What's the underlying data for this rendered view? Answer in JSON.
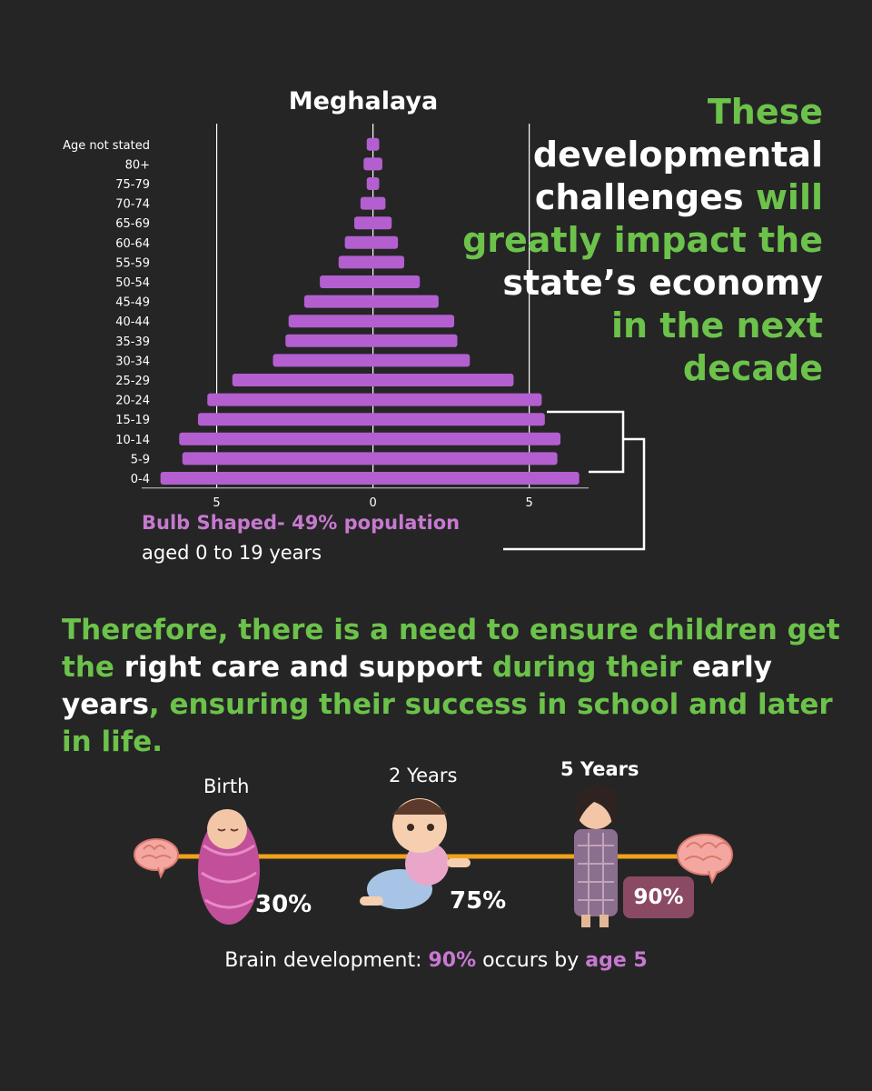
{
  "chart_data": {
    "type": "bar",
    "orientation": "horizontal",
    "title": "Meghalaya",
    "categories": [
      "Age not stated",
      "80+",
      "75-79",
      "70-74",
      "65-69",
      "60-64",
      "55-59",
      "50-54",
      "45-49",
      "40-44",
      "35-39",
      "30-34",
      "25-29",
      "20-24",
      "15-19",
      "10-14",
      "5-9",
      "0-4"
    ],
    "series": [
      {
        "values": [
          [
            -0.2,
            0.2
          ],
          [
            -0.3,
            0.3
          ],
          [
            -0.2,
            0.2
          ],
          [
            -0.4,
            0.4
          ],
          [
            -0.6,
            0.6
          ],
          [
            -0.9,
            0.8
          ],
          [
            -1.1,
            1.0
          ],
          [
            -1.7,
            1.5
          ],
          [
            -2.2,
            2.1
          ],
          [
            -2.7,
            2.6
          ],
          [
            -2.8,
            2.7
          ],
          [
            -3.2,
            3.1
          ],
          [
            -4.5,
            4.5
          ],
          [
            -5.3,
            5.4
          ],
          [
            -5.6,
            5.5
          ],
          [
            -6.2,
            6.0
          ],
          [
            -6.1,
            5.9
          ],
          [
            -6.8,
            6.6
          ]
        ]
      }
    ],
    "xticks": [
      {
        "value": -5,
        "label": "5"
      },
      {
        "value": 0,
        "label": "0"
      },
      {
        "value": 5,
        "label": "5"
      }
    ],
    "xlim": [
      -7.4,
      6.9
    ],
    "grid": "vertical lines at ticks",
    "colors": {
      "bar": "#b35fd0",
      "grid": "#ffffff"
    }
  },
  "headline": {
    "parts": [
      {
        "text": "These ",
        "color": "green"
      },
      {
        "text": "developmental challenges ",
        "color": "white"
      },
      {
        "text": "will greatly impact the ",
        "color": "green"
      },
      {
        "text": "state’s economy ",
        "color": "white"
      },
      {
        "text": "in the next decade",
        "color": "green"
      }
    ]
  },
  "annotation": {
    "title": "Bulb Shaped- 49% population",
    "subtitle": "aged 0 to 19 years"
  },
  "paragraph": {
    "parts": [
      {
        "text": "Therefore, there is a need to ensure children get the ",
        "color": "green"
      },
      {
        "text": "right care and support ",
        "color": "white"
      },
      {
        "text": "during their ",
        "color": "green"
      },
      {
        "text": "early years",
        "color": "white"
      },
      {
        "text": ", ensuring their success in school and later in life.",
        "color": "green"
      }
    ]
  },
  "timeline": {
    "stages": [
      {
        "label": "Birth",
        "percent": "30%",
        "icon": "swaddled-baby-icon"
      },
      {
        "label": "2 Years",
        "percent": "75%",
        "icon": "crawling-toddler-icon"
      },
      {
        "label": "5 Years",
        "percent": "90%",
        "icon": "standing-girl-icon"
      }
    ],
    "start_icon": "brain-icon",
    "end_icon": "brain-icon"
  },
  "footer": {
    "prefix": "Brain development: ",
    "highlight1": "90%",
    "middle": " occurs by ",
    "highlight2": "age 5"
  },
  "colors": {
    "background": "#252525",
    "green": "#6cc24a",
    "purple": "#c779d0",
    "bar": "#b35fd0",
    "timeline": "#f0a21c",
    "badge": "#8a4a64"
  }
}
